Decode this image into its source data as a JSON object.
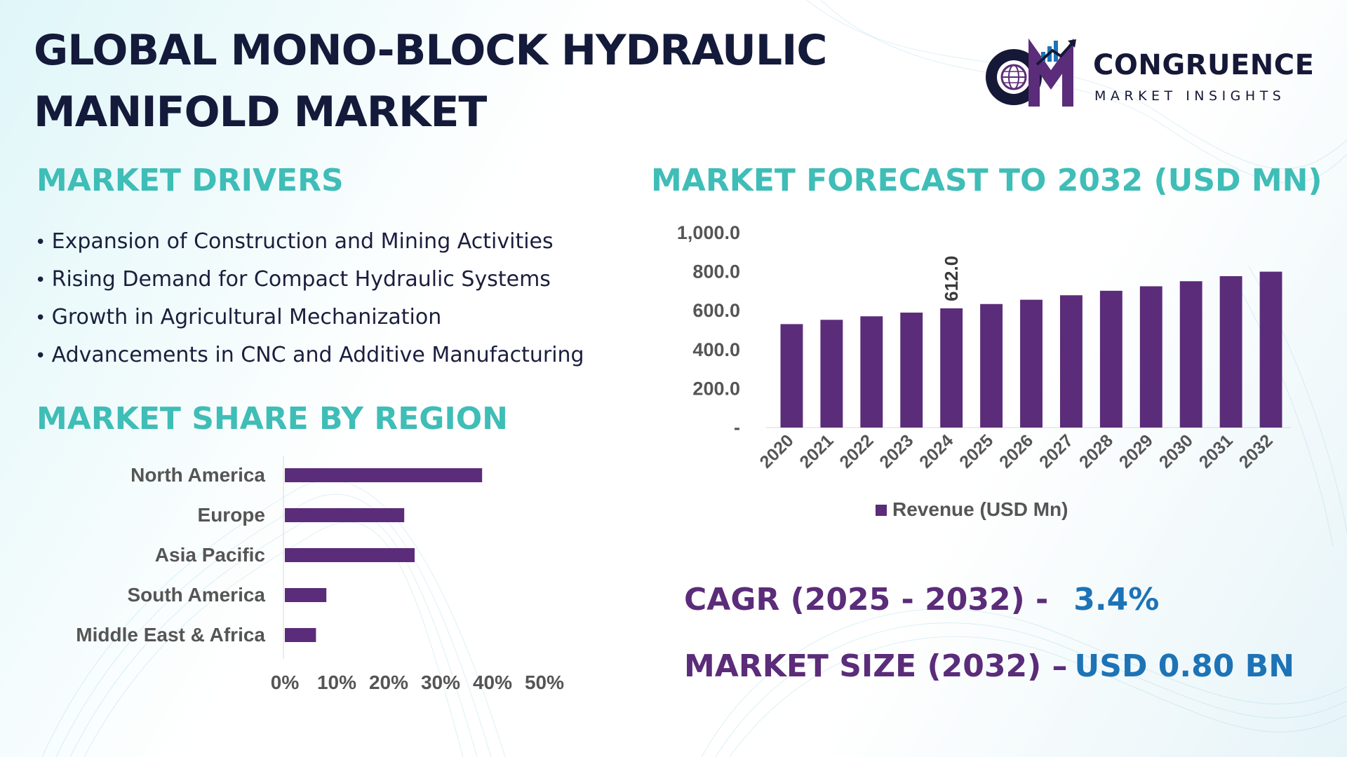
{
  "title": {
    "line1": "GLOBAL MONO-BLOCK HYDRAULIC",
    "line2": "MANIFOLD MARKET"
  },
  "logo": {
    "name": "CONGRUENCE",
    "tagline": "MARKET INSIGHTS",
    "icon": "cm-globe-chart-logo",
    "colors": {
      "dark": "#151836",
      "purple": "#5b2c79",
      "blue": "#1d73b6"
    }
  },
  "drivers": {
    "heading": "MARKET DRIVERS",
    "items": [
      "Expansion of Construction and Mining Activities",
      "Rising Demand for Compact Hydraulic Systems",
      "Growth in Agricultural Mechanization",
      "Advancements in CNC and Additive Manufacturing"
    ]
  },
  "forecast": {
    "heading": "MARKET FORECAST TO 2032 (USD MN)"
  },
  "region": {
    "heading": "MARKET SHARE BY REGION"
  },
  "kpis": {
    "cagr_label": "CAGR (2025 - 2032) -",
    "cagr_value": "3.4%",
    "size_label": "MARKET SIZE (2032) –",
    "size_value": "USD 0.80 BN"
  },
  "colors": {
    "bar": "#5b2c79",
    "heading": "#3fbdb7",
    "title": "#141a3a",
    "axis_text": "#555555"
  },
  "chart_data": [
    {
      "type": "bar",
      "categories": [
        "2020",
        "2021",
        "2022",
        "2023",
        "2024",
        "2025",
        "2026",
        "2027",
        "2028",
        "2029",
        "2030",
        "2031",
        "2032"
      ],
      "series": [
        {
          "name": "Revenue (USD Mn)",
          "values": [
            531,
            553,
            571,
            590,
            612,
            634,
            656,
            679,
            702,
            725,
            751,
            777,
            800
          ]
        }
      ],
      "data_labels": [
        {
          "category": "2024",
          "text": "612.0"
        }
      ],
      "yticks": [
        "1,000.0",
        "800.0",
        "600.0",
        "400.0",
        "200.0",
        "-"
      ],
      "ylim": [
        0,
        1000
      ],
      "legend": "bottom",
      "grid": false
    },
    {
      "type": "bar",
      "orientation": "horizontal",
      "categories": [
        "North America",
        "Europe",
        "Asia Pacific",
        "South America",
        "Middle East & Africa"
      ],
      "values": [
        38,
        23,
        25,
        8,
        6
      ],
      "xticks": [
        "0%",
        "10%",
        "20%",
        "30%",
        "40%",
        "50%"
      ],
      "xlim": [
        0,
        50
      ],
      "grid": false
    }
  ]
}
